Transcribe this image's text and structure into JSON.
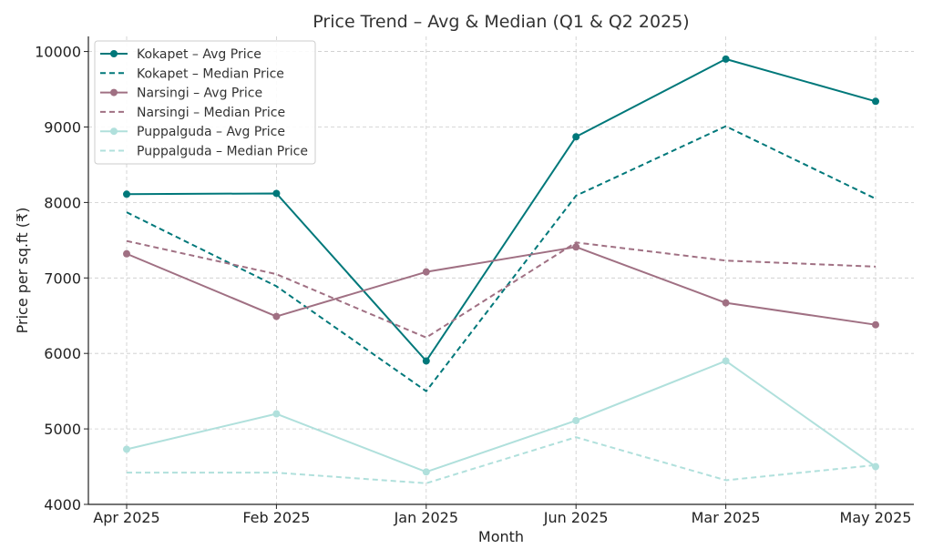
{
  "chart_data": {
    "type": "line",
    "title": "Price Trend – Avg & Median (Q1 & Q2 2025)",
    "xlabel": "Month",
    "ylabel": "Price per sq.ft (₹)",
    "categories": [
      "Apr 2025",
      "Feb 2025",
      "Jan 2025",
      "Jun 2025",
      "Mar 2025",
      "May 2025"
    ],
    "ylim": [
      4000,
      10200
    ],
    "yticks": [
      4000,
      5000,
      6000,
      7000,
      8000,
      9000,
      10000
    ],
    "grid": true,
    "legend_position": "top-left",
    "series": [
      {
        "name": "Kokapet – Avg Price",
        "values": [
          8110,
          8120,
          5900,
          8870,
          9900,
          9340
        ],
        "color": "#00787a",
        "style": "solid",
        "marker": true
      },
      {
        "name": "Kokapet – Median Price",
        "values": [
          7870,
          6890,
          5500,
          8090,
          9010,
          8050
        ],
        "color": "#00787a",
        "style": "dashed",
        "marker": false
      },
      {
        "name": "Narsingi – Avg Price",
        "values": [
          7320,
          6490,
          7080,
          7410,
          6670,
          6380
        ],
        "color": "#a07083",
        "style": "solid",
        "marker": true
      },
      {
        "name": "Narsingi – Median Price",
        "values": [
          7490,
          7050,
          6210,
          7470,
          7230,
          7150
        ],
        "color": "#a07083",
        "style": "dashed",
        "marker": false
      },
      {
        "name": "Puppalguda – Avg Price",
        "values": [
          4730,
          5200,
          4430,
          5110,
          5900,
          4500
        ],
        "color": "#b0e0dc",
        "style": "solid",
        "marker": true
      },
      {
        "name": "Puppalguda – Median Price",
        "values": [
          4420,
          4420,
          4280,
          4890,
          4320,
          4520
        ],
        "color": "#b0e0dc",
        "style": "dashed",
        "marker": false
      }
    ]
  }
}
